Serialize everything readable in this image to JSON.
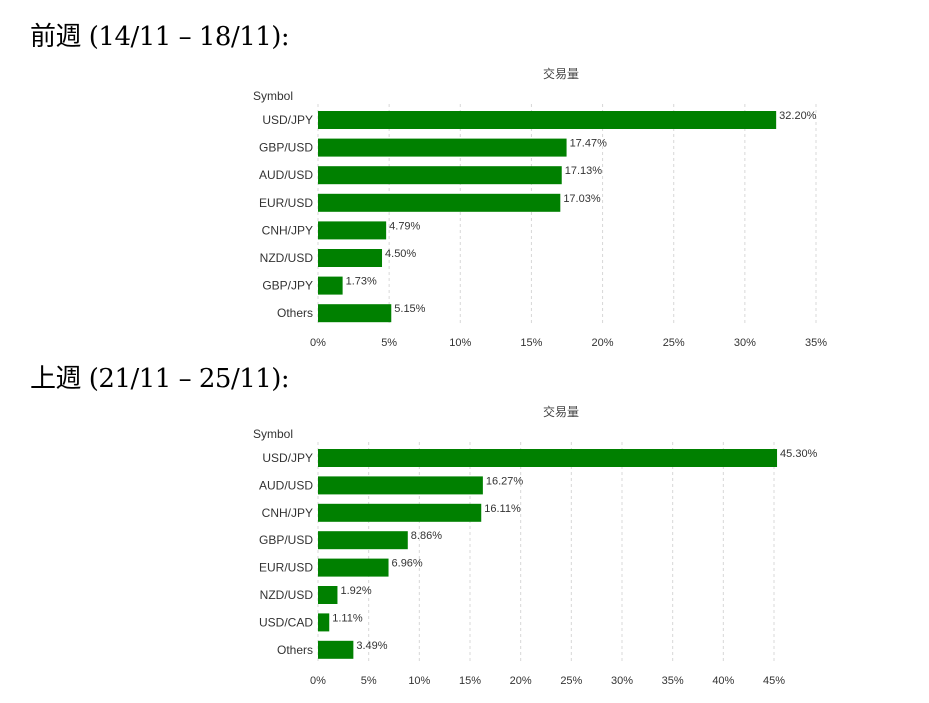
{
  "headings": [
    "前週 (14/11 – 18/11):",
    "上週 (21/11 – 25/11):"
  ],
  "chart_data": [
    {
      "type": "bar",
      "orientation": "horizontal",
      "title": "交易量",
      "ylabel": "Symbol",
      "xlabel": "",
      "categories": [
        "USD/JPY",
        "GBP/USD",
        "AUD/USD",
        "EUR/USD",
        "CNH/JPY",
        "NZD/USD",
        "GBP/JPY",
        "Others"
      ],
      "values": [
        32.2,
        17.47,
        17.13,
        17.03,
        4.79,
        4.5,
        1.73,
        5.15
      ],
      "value_labels": [
        "32.20%",
        "17.47%",
        "17.13%",
        "17.03%",
        "4.79%",
        "4.50%",
        "1.73%",
        "5.15%"
      ],
      "xlim": [
        0,
        35
      ],
      "xticks": [
        "0%",
        "5%",
        "10%",
        "15%",
        "20%",
        "25%",
        "30%",
        "35%"
      ],
      "grid": true,
      "bar_color": "#008000"
    },
    {
      "type": "bar",
      "orientation": "horizontal",
      "title": "交易量",
      "ylabel": "Symbol",
      "xlabel": "",
      "categories": [
        "USD/JPY",
        "AUD/USD",
        "CNH/JPY",
        "GBP/USD",
        "EUR/USD",
        "NZD/USD",
        "USD/CAD",
        "Others"
      ],
      "values": [
        45.3,
        16.27,
        16.11,
        8.86,
        6.96,
        1.92,
        1.11,
        3.49
      ],
      "value_labels": [
        "45.30%",
        "16.27%",
        "16.11%",
        "8.86%",
        "6.96%",
        "1.92%",
        "1.11%",
        "3.49%"
      ],
      "xlim": [
        0,
        45
      ],
      "xticks": [
        "0%",
        "5%",
        "10%",
        "15%",
        "20%",
        "25%",
        "30%",
        "35%",
        "40%",
        "45%"
      ],
      "grid": true,
      "bar_color": "#008000"
    }
  ]
}
